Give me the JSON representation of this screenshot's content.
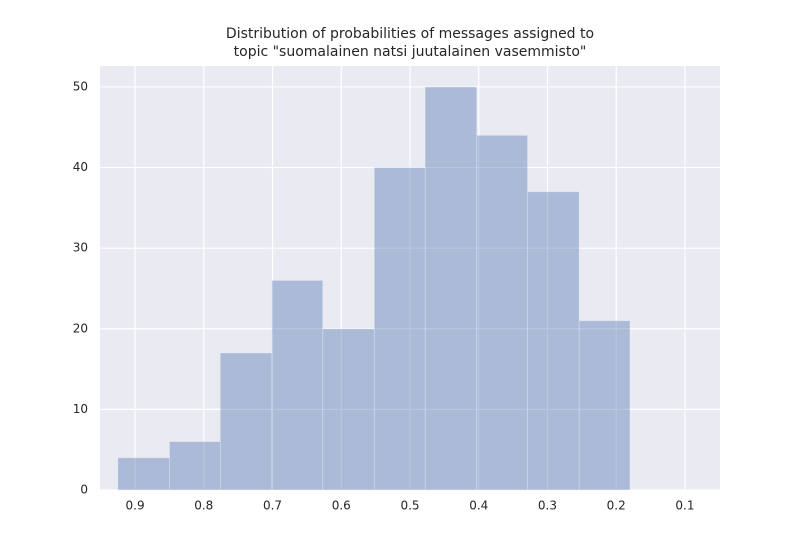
{
  "chart_data": {
    "type": "histogram",
    "title": [
      "Distribution of probabilities of messages assigned to",
      "topic \"suomalainen natsi juutalainen vasemmisto\""
    ],
    "bins": [
      0.18,
      0.254,
      0.329,
      0.403,
      0.478,
      0.552,
      0.627,
      0.701,
      0.776,
      0.85,
      0.925
    ],
    "values": [
      21,
      37,
      44,
      50,
      40,
      20,
      26,
      17,
      6,
      4
    ],
    "color": "#4c72b0",
    "xlim": [
      0.951,
      0.049
    ],
    "xticks": [
      0.9,
      0.8,
      0.7,
      0.6,
      0.5,
      0.4,
      0.3,
      0.2,
      0.1
    ],
    "ylim": [
      0,
      52.6
    ],
    "yticks": [
      0,
      10,
      20,
      30,
      40,
      50
    ],
    "grid": true
  }
}
